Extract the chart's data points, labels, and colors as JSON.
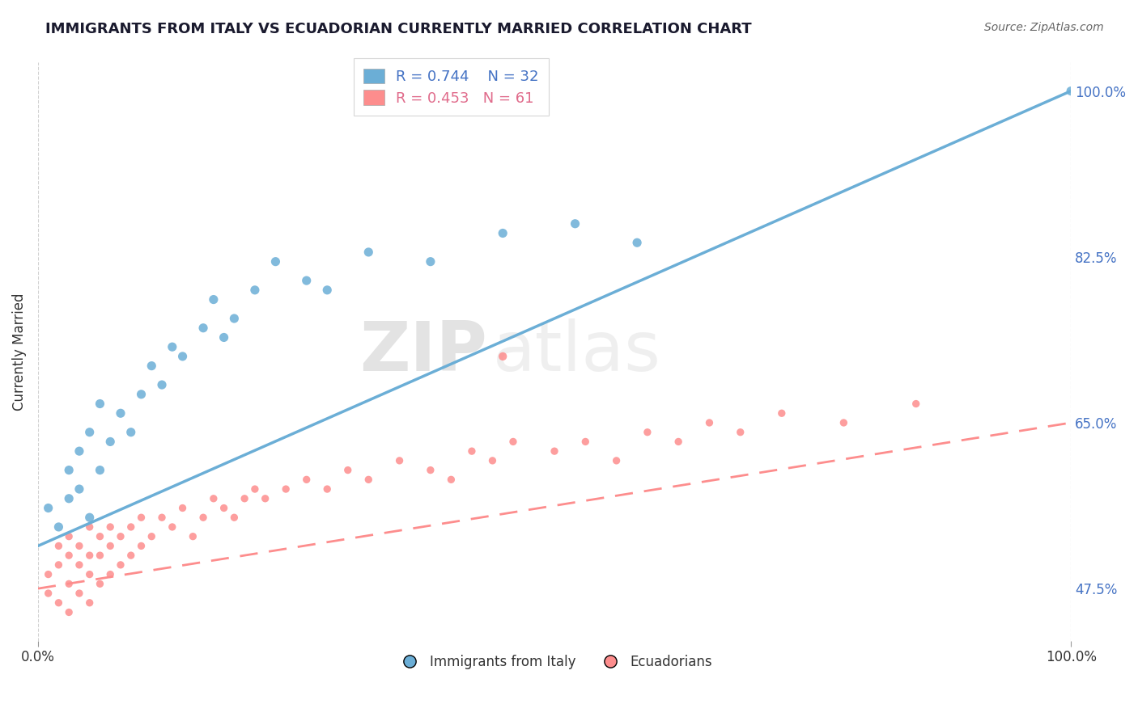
{
  "title": "IMMIGRANTS FROM ITALY VS ECUADORIAN CURRENTLY MARRIED CORRELATION CHART",
  "source_text": "Source: ZipAtlas.com",
  "ylabel": "Currently Married",
  "series1_name": "Immigrants from Italy",
  "series1_color": "#6baed6",
  "series1_R": 0.744,
  "series1_N": 32,
  "series2_name": "Ecuadorians",
  "series2_color": "#fd8d8d",
  "series2_R": 0.453,
  "series2_N": 61,
  "xlim": [
    0,
    100
  ],
  "ylim": [
    42,
    103
  ],
  "yticks": [
    47.5,
    65.0,
    82.5,
    100.0
  ],
  "ytick_labels": [
    "47.5%",
    "65.0%",
    "82.5%",
    "100.0%"
  ],
  "background_color": "#ffffff",
  "grid_color": "#cccccc",
  "watermark_zip": "ZIP",
  "watermark_atlas": "atlas",
  "title_fontsize": 13,
  "series1_x": [
    1,
    2,
    3,
    3,
    4,
    4,
    5,
    5,
    6,
    6,
    7,
    8,
    9,
    10,
    11,
    12,
    13,
    14,
    16,
    17,
    18,
    19,
    21,
    23,
    26,
    28,
    32,
    38,
    45,
    52,
    58,
    100
  ],
  "series1_y": [
    56,
    54,
    57,
    60,
    58,
    62,
    55,
    64,
    60,
    67,
    63,
    66,
    64,
    68,
    71,
    69,
    73,
    72,
    75,
    78,
    74,
    76,
    79,
    82,
    80,
    79,
    83,
    82,
    85,
    86,
    84,
    100
  ],
  "series2_x": [
    1,
    1,
    2,
    2,
    2,
    3,
    3,
    3,
    3,
    4,
    4,
    4,
    5,
    5,
    5,
    5,
    6,
    6,
    6,
    7,
    7,
    7,
    8,
    8,
    9,
    9,
    10,
    10,
    11,
    12,
    13,
    14,
    15,
    16,
    17,
    18,
    19,
    20,
    21,
    22,
    24,
    26,
    28,
    30,
    32,
    35,
    38,
    40,
    42,
    44,
    46,
    50,
    53,
    56,
    59,
    62,
    65,
    68,
    72,
    78,
    85
  ],
  "series2_y": [
    47,
    49,
    46,
    50,
    52,
    45,
    48,
    51,
    53,
    47,
    50,
    52,
    46,
    49,
    51,
    54,
    48,
    51,
    53,
    49,
    52,
    54,
    50,
    53,
    51,
    54,
    52,
    55,
    53,
    55,
    54,
    56,
    53,
    55,
    57,
    56,
    55,
    57,
    58,
    57,
    58,
    59,
    58,
    60,
    59,
    61,
    60,
    59,
    62,
    61,
    63,
    62,
    63,
    61,
    64,
    63,
    65,
    64,
    66,
    65,
    67
  ],
  "line1_x": [
    0,
    100
  ],
  "line1_y": [
    52,
    100
  ],
  "line2_x": [
    0,
    100
  ],
  "line2_y": [
    47.5,
    65
  ],
  "series2_outlier_x": 45,
  "series2_outlier_y": 72
}
